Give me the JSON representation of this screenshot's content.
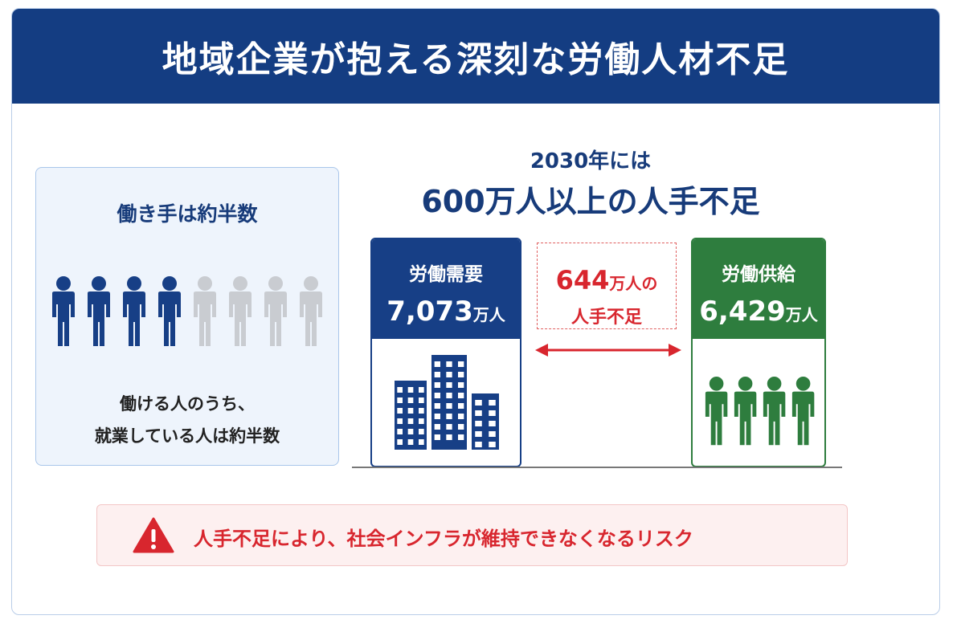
{
  "header": {
    "title": "地域企業が抱える深刻な労働人材不足"
  },
  "left_panel": {
    "title": "働き手は約半数",
    "caption": [
      "働ける人のうち、",
      "就業している人は約半数"
    ]
  },
  "headline": {
    "line1": "2030年には",
    "line2": "600万人以上の人手不足"
  },
  "demand": {
    "label": "労働需要",
    "value": "7,073",
    "unit": "万人"
  },
  "gap": {
    "value": "644",
    "unit": "万人の",
    "label": "人手不足"
  },
  "supply": {
    "label": "労働供給",
    "value": "6,429",
    "unit": "万人"
  },
  "warning": {
    "text": "人手不足により、社会インフラが維持できなくなるリスク"
  }
}
